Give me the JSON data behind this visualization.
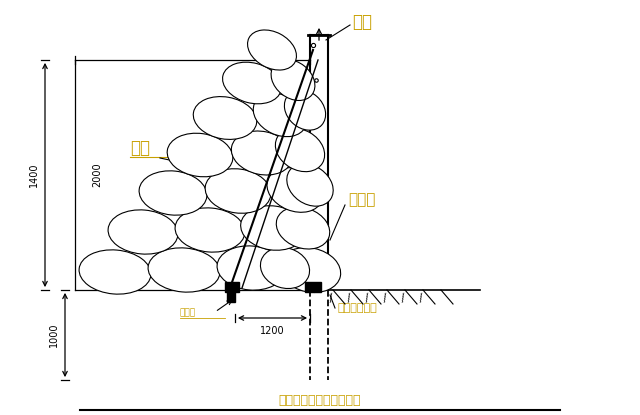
{
  "title": "围墙墙体钢管沙袋加固图",
  "title_color": "#c8a000",
  "bg_color": "#ffffff",
  "label_weidu": "围挡",
  "label_shadian": "砂袋",
  "label_linshuimian": "临水面",
  "label_gangguan": "钢管打入土体",
  "label_mubengzi": "木楔子",
  "dim_1400": "1400",
  "dim_2000": "2000",
  "dim_1200": "1200",
  "dim_1000": "1000",
  "annotation_color": "#c8a000",
  "line_color": "#000000"
}
